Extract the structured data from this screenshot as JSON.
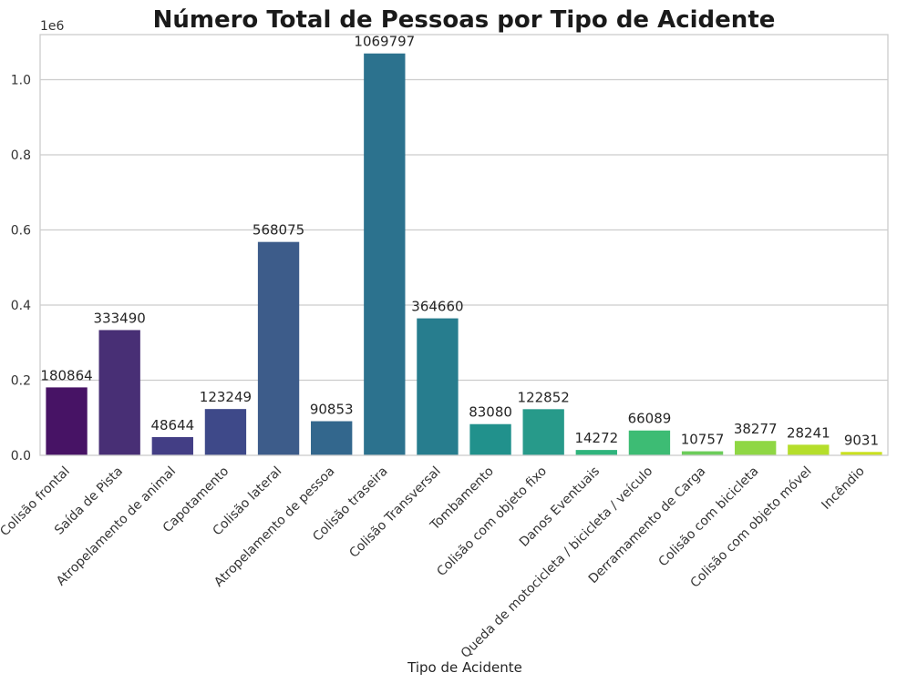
{
  "chart_data": {
    "type": "bar",
    "title": "Número Total de Pessoas por Tipo de Acidente",
    "xlabel": "Tipo de Acidente",
    "ylabel": "",
    "y_offset_label": "1e6",
    "ylim": [
      0,
      1120000
    ],
    "yticks": [
      0,
      200000,
      400000,
      600000,
      800000,
      1000000
    ],
    "ytick_labels": [
      "0.0",
      "0.2",
      "0.4",
      "0.6",
      "0.8",
      "1.0"
    ],
    "grid": "horizontal",
    "categories": [
      "Colisão frontal",
      "Saída de Pista",
      "Atropelamento de animal",
      "Capotamento",
      "Colisão lateral",
      "Atropelamento de pessoa",
      "Colisão traseira",
      "Colisão Transversal",
      "Tombamento",
      "Colisão com objeto fixo",
      "Danos Eventuais",
      "Queda de motocicleta / bicicleta / veículo",
      "Derramamento de Carga",
      "Colisão com bicicleta",
      "Colisão com objeto móvel",
      "Incêndio"
    ],
    "values": [
      180864,
      333490,
      48644,
      123249,
      568075,
      90853,
      1069797,
      364660,
      83080,
      122852,
      14272,
      66089,
      10757,
      38277,
      28241,
      9031
    ],
    "data_labels": [
      "180864",
      "333490",
      "48644",
      "123249",
      "568075",
      "90853",
      "1069797",
      "364660",
      "83080",
      "122852",
      "14272",
      "66089",
      "10757",
      "38277",
      "28241",
      "9031"
    ],
    "colors": [
      "#471365",
      "#482f75",
      "#433e85",
      "#3e4989",
      "#3d5c8a",
      "#33678d",
      "#2c728e",
      "#277d8e",
      "#21918c",
      "#279a8a",
      "#2fb47c",
      "#3dbc74",
      "#6ccd5a",
      "#8fd744",
      "#b5de2b",
      "#cae11f"
    ]
  }
}
